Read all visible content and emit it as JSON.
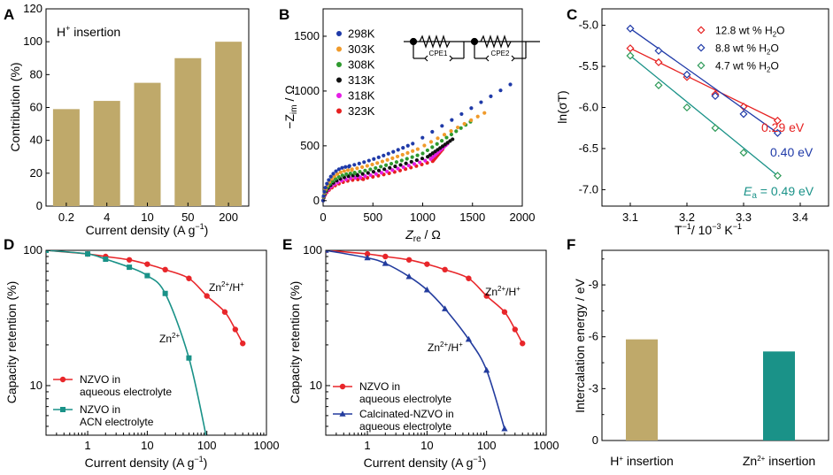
{
  "colors": {
    "tan": "#bfa96a",
    "teal": "#1a9288",
    "red": "#e8262a",
    "navy": "#233c9e",
    "green_c": "#2e9a58"
  },
  "panelA": {
    "label": "A",
    "annotation_main": "H",
    "annotation_sup": "+",
    "annotation_rest": " insertion",
    "ylabel": "Contribution (%)",
    "xlabel": "Current density (A g",
    "xlabel_sup": "−1",
    "xlabel_end": ")",
    "chart_data": {
      "type": "bar",
      "categories": [
        "0.2",
        "4",
        "10",
        "50",
        "200"
      ],
      "values": [
        59,
        64,
        75,
        90,
        100
      ],
      "ylim": [
        0,
        120
      ],
      "yticks": [
        0,
        20,
        40,
        60,
        80,
        100,
        120
      ]
    }
  },
  "panelB": {
    "label": "B",
    "ylabel_pre": "−Z",
    "ylabel_sub": "im",
    "ylabel_post": " / Ω",
    "xlabel_pre": "Z",
    "xlabel_sub": "re",
    "xlabel_post": " / Ω",
    "circuit_labels": [
      "CPE1",
      "CPE2"
    ],
    "chart_data": {
      "type": "scatter",
      "xlim": [
        0,
        2000
      ],
      "ylim": [
        -50,
        1750
      ],
      "xticks": [
        0,
        500,
        1000,
        1500,
        2000
      ],
      "yticks": [
        0,
        500,
        1000,
        1500
      ],
      "series": [
        {
          "name": "298K",
          "color": "#1f3aa8",
          "knee_x": 180,
          "knee_y": 310,
          "plateau_x": 900,
          "plateau_y": 520,
          "end_x": 1880,
          "end_y": 1060
        },
        {
          "name": "303K",
          "color": "#f09a2a",
          "knee_x": 200,
          "knee_y": 280,
          "plateau_x": 950,
          "plateau_y": 470,
          "end_x": 1620,
          "end_y": 800
        },
        {
          "name": "308K",
          "color": "#2f9a2f",
          "knee_x": 220,
          "knee_y": 250,
          "plateau_x": 1000,
          "plateau_y": 430,
          "end_x": 1480,
          "end_y": 720
        },
        {
          "name": "313K",
          "color": "#111111",
          "knee_x": 240,
          "knee_y": 230,
          "plateau_x": 1050,
          "plateau_y": 400,
          "end_x": 1300,
          "end_y": 560
        },
        {
          "name": "318K",
          "color": "#e61ee6",
          "knee_x": 260,
          "knee_y": 210,
          "plateau_x": 1080,
          "plateau_y": 380,
          "end_x": 1250,
          "end_y": 520
        },
        {
          "name": "323K",
          "color": "#e62020",
          "knee_x": 280,
          "knee_y": 195,
          "plateau_x": 1100,
          "plateau_y": 360,
          "end_x": 1200,
          "end_y": 470
        }
      ]
    }
  },
  "panelC": {
    "label": "C",
    "ylabel": "ln(σT)",
    "xlabel_pre": "T",
    "xlabel_sup1": "−1",
    "xlabel_mid": "/ 10",
    "xlabel_sup2": "−3",
    "xlabel_end": " K",
    "xlabel_sup3": "−1",
    "ann_red": "0.29 eV",
    "ann_blue": "0.40 eV",
    "ann_green_pre": "E",
    "ann_green_sub": "a",
    "ann_green_post": " = 0.49 eV",
    "chart_data": {
      "type": "scatter",
      "xlim": [
        3.05,
        3.45
      ],
      "ylim": [
        -7.2,
        -4.8
      ],
      "xticks": [
        3.1,
        3.2,
        3.3,
        3.4
      ],
      "yticks": [
        -5.0,
        -5.5,
        -6.0,
        -6.5,
        -7.0
      ],
      "series": [
        {
          "name_pre": "12.8 wt % H",
          "name_sub": "2",
          "name_post": "O",
          "color": "#e62020",
          "x": [
            3.1,
            3.15,
            3.2,
            3.25,
            3.3,
            3.36
          ],
          "y": [
            -5.28,
            -5.45,
            -5.63,
            -5.84,
            -5.99,
            -6.16
          ]
        },
        {
          "name_pre": "8.8 wt % H",
          "name_sub": "2",
          "name_post": "O",
          "color": "#1f3aa8",
          "x": [
            3.1,
            3.15,
            3.2,
            3.25,
            3.3,
            3.36
          ],
          "y": [
            -5.04,
            -5.31,
            -5.6,
            -5.86,
            -6.08,
            -6.31
          ]
        },
        {
          "name_pre": "4.7 wt % H",
          "name_sub": "2",
          "name_post": "O",
          "color": "#2e9a58",
          "x": [
            3.1,
            3.15,
            3.2,
            3.25,
            3.3,
            3.36
          ],
          "y": [
            -5.37,
            -5.73,
            -6.0,
            -6.25,
            -6.55,
            -6.83
          ]
        }
      ]
    }
  },
  "panelD": {
    "label": "D",
    "ylabel": "Capacity retention (%)",
    "xlabel": "Current density (A g",
    "xlabel_sup": "−1",
    "xlabel_end": ")",
    "ann1_pre": "Zn",
    "ann1_sup1": "2+",
    "ann1_mid": "/H",
    "ann1_sup2": "+",
    "ann2_pre": "Zn",
    "ann2_sup": "2+",
    "chart_data": {
      "type": "line",
      "xscale": "log",
      "yscale": "log",
      "xlim": [
        0.2,
        1000
      ],
      "ylim": [
        4.3,
        100
      ],
      "xticks": [
        "1",
        "10",
        "100",
        "1000"
      ],
      "yticks": [
        "10",
        "100"
      ],
      "series": [
        {
          "name": "NZVO in",
          "name2": "aqueous electrolyte",
          "color": "#e8262a",
          "marker": "circle",
          "x": [
            0.2,
            1,
            2,
            5,
            10,
            20,
            50,
            100,
            200,
            300,
            400
          ],
          "y": [
            100,
            94,
            90,
            85,
            79,
            72,
            62,
            46,
            35,
            26,
            20.5
          ]
        },
        {
          "name": "NZVO in",
          "name2": "ACN electrolyte",
          "color": "#1a9288",
          "marker": "square",
          "x": [
            0.2,
            1,
            2,
            5,
            10,
            20,
            50,
            100
          ],
          "y": [
            100,
            94,
            86,
            75,
            65,
            48,
            16,
            4
          ]
        }
      ]
    }
  },
  "panelE": {
    "label": "E",
    "ylabel": "Capacity retention (%)",
    "xlabel": "Current density (A g",
    "xlabel_sup": "−1",
    "xlabel_end": ")",
    "ann1_pre": "Zn",
    "ann1_sup1": "2+",
    "ann1_mid": "/H",
    "ann1_sup2": "+",
    "ann2_pre": "Zn",
    "ann2_sup1": "2+",
    "ann2_mid": "/H",
    "ann2_sup2": "+",
    "chart_data": {
      "type": "line",
      "xscale": "log",
      "yscale": "log",
      "xlim": [
        0.2,
        1000
      ],
      "ylim": [
        4.3,
        100
      ],
      "xticks": [
        "1",
        "10",
        "100",
        "1000"
      ],
      "yticks": [
        "10",
        "100"
      ],
      "series": [
        {
          "name": "NZVO in",
          "name2": "aqueous electrolyte",
          "color": "#e8262a",
          "marker": "circle",
          "x": [
            0.2,
            1,
            2,
            5,
            10,
            20,
            50,
            100,
            200,
            300,
            400
          ],
          "y": [
            100,
            94,
            90,
            85,
            79,
            72,
            62,
            46,
            35,
            26,
            20.5
          ]
        },
        {
          "name": "Calcinated-NZVO in",
          "name2": "aqueous electrolyte",
          "color": "#233c9e",
          "marker": "triangle",
          "x": [
            0.2,
            1,
            2,
            5,
            10,
            20,
            50,
            100,
            200
          ],
          "y": [
            100,
            88,
            80,
            64,
            51,
            37,
            22,
            13,
            4.8
          ]
        }
      ]
    }
  },
  "panelF": {
    "label": "F",
    "ylabel": "Intercalation energy / eV",
    "chart_data": {
      "type": "bar",
      "ylim": [
        0,
        -11
      ],
      "yticks": [
        "0",
        "-3",
        "-6",
        "-9"
      ],
      "categories": [
        {
          "pre": "H",
          "sup": "+",
          "post": " insertion"
        },
        {
          "pre": "Zn",
          "sup": "2+",
          "post": " insertion"
        }
      ],
      "values": [
        -5.85,
        -5.15
      ]
    }
  }
}
